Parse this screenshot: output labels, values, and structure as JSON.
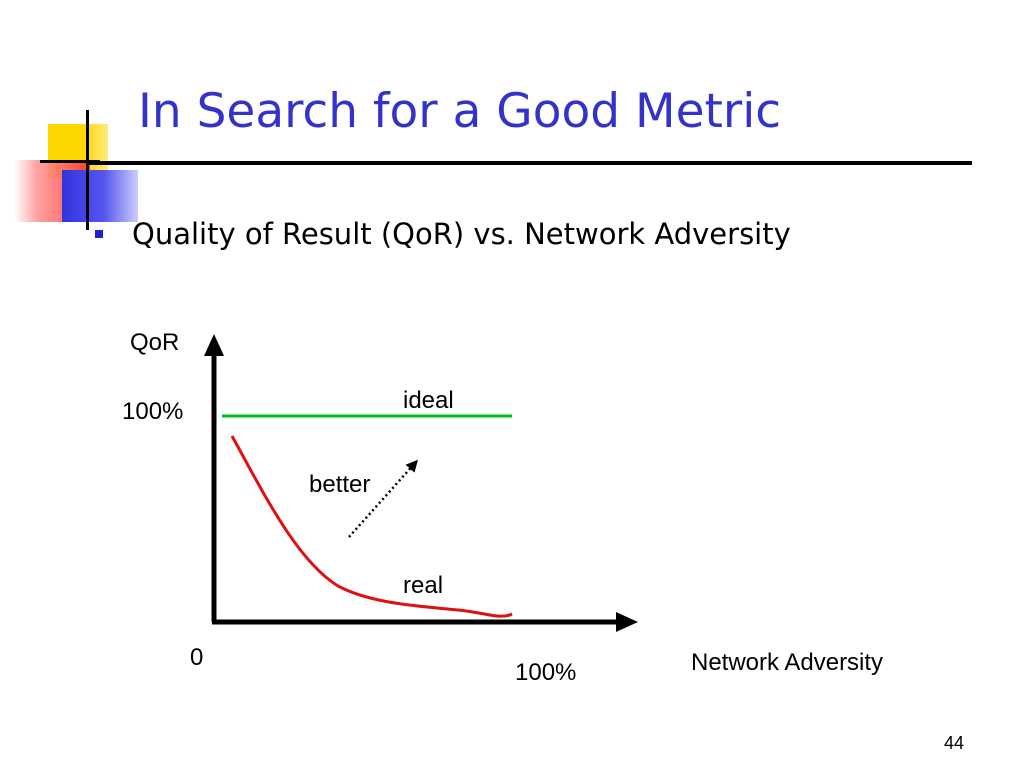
{
  "slide": {
    "title": "In Search for a Good Metric",
    "bullet": "Quality of Result (QoR) vs. Network Adversity",
    "page_number": "44"
  },
  "diagram": {
    "y_axis_label": "QoR",
    "y_tick_label": "100%",
    "origin_label": "0",
    "x_tick_label": "100%",
    "x_axis_label": "Network Adversity",
    "ideal_label": "ideal",
    "real_label": "real",
    "better_label": "better"
  },
  "colors": {
    "title": "#3333cc",
    "bullet_marker": "#2222cc",
    "ideal_line": "#00bb22",
    "real_curve": "#dd1111",
    "axis": "#000000",
    "deco_yellow": "#ffd700",
    "deco_blue": "#3333dd",
    "deco_red": "#ff3333"
  }
}
